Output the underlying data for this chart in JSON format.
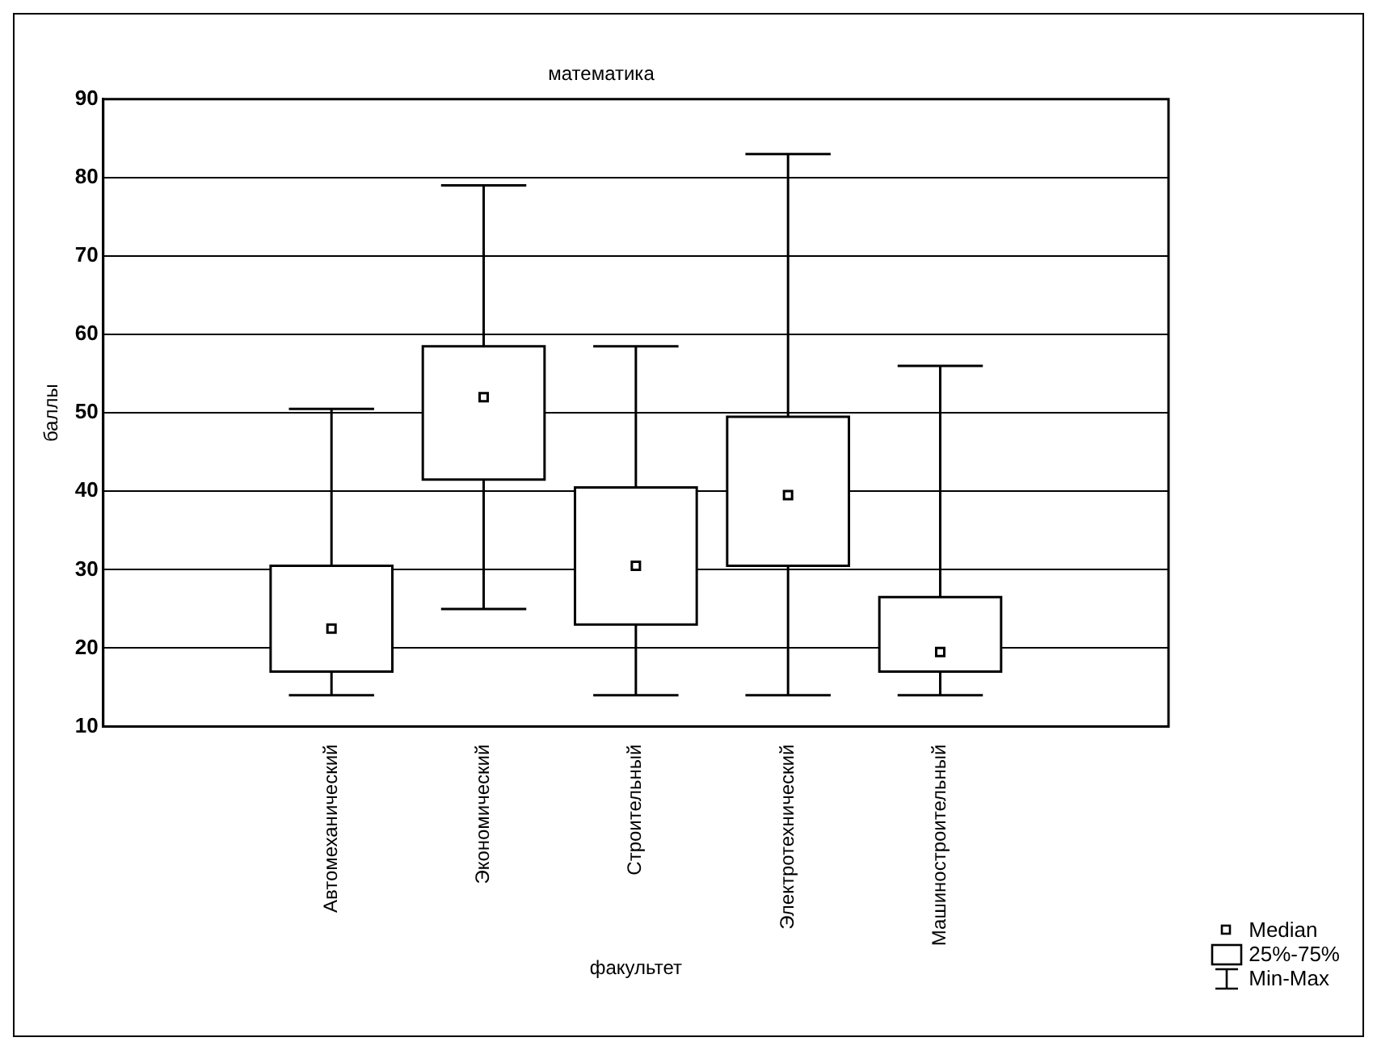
{
  "chart_data": {
    "type": "box",
    "title": "математика",
    "xlabel": "факультет",
    "ylabel": "баллы",
    "categories": [
      null,
      "Автомеханический",
      "Экономический",
      "Строительный",
      "Электротехнический",
      "Машиностроительный",
      null
    ],
    "boxes": [
      null,
      {
        "low": 14,
        "q1": 17,
        "median": 22.5,
        "q3": 30.5,
        "high": 50.5
      },
      {
        "low": 25,
        "q1": 41.5,
        "median": 52,
        "q3": 58.5,
        "high": 79
      },
      {
        "low": 14,
        "q1": 23,
        "median": 30.5,
        "q3": 40.5,
        "high": 58.5
      },
      {
        "low": 14,
        "q1": 30.5,
        "median": 39.5,
        "q3": 49.5,
        "high": 83
      },
      {
        "low": 14,
        "q1": 17,
        "median": 19.5,
        "q3": 26.5,
        "high": 56
      },
      null
    ],
    "ylim": [
      10,
      90
    ],
    "yticks": [
      10,
      20,
      30,
      40,
      50,
      60,
      70,
      80,
      90
    ],
    "grid": "y",
    "annotations": [
      "Median",
      "25%-75%",
      "Min-Max"
    ]
  }
}
